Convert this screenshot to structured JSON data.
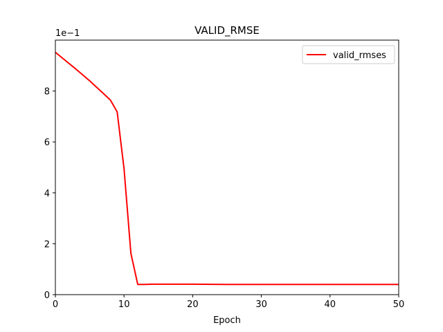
{
  "chart_data": {
    "type": "line",
    "title": "VALID_RMSE",
    "xlabel": "Epoch",
    "ylabel": "",
    "xlim": [
      0,
      50
    ],
    "ylim": [
      0,
      10
    ],
    "y_offset_text": "1e−1",
    "xticks": [
      0,
      10,
      20,
      30,
      40,
      50
    ],
    "yticks": [
      0,
      2,
      4,
      6,
      8
    ],
    "grid": false,
    "legend_position": "upper-right",
    "series": [
      {
        "name": "valid_rmses",
        "color": "#ff0000",
        "x": [
          0,
          1,
          2,
          3,
          4,
          5,
          6,
          7,
          8,
          9,
          10,
          11,
          12,
          13,
          14,
          15,
          20,
          25,
          30,
          35,
          40,
          45,
          50
        ],
        "y": [
          9.52,
          9.3,
          9.08,
          8.86,
          8.63,
          8.4,
          8.15,
          7.9,
          7.65,
          7.18,
          4.95,
          1.62,
          0.4,
          0.4,
          0.41,
          0.41,
          0.41,
          0.4,
          0.4,
          0.4,
          0.4,
          0.4,
          0.4
        ]
      }
    ]
  }
}
